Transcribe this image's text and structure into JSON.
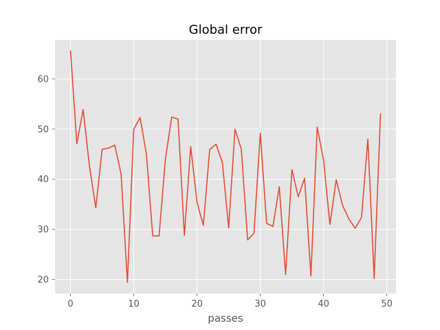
{
  "chart_data": {
    "type": "line",
    "title": "Global error",
    "xlabel": "passes",
    "ylabel": "",
    "xlim": [
      -2.45,
      51.45
    ],
    "ylim": [
      17.2,
      67.8
    ],
    "xticks": [
      0,
      10,
      20,
      30,
      40,
      50
    ],
    "yticks": [
      20,
      30,
      40,
      50,
      60
    ],
    "grid": true,
    "background": "#E5E5E5",
    "grid_color": "#FFFFFF",
    "line_color": "#E24A33",
    "x": [
      0,
      1,
      2,
      3,
      4,
      5,
      6,
      7,
      8,
      9,
      10,
      11,
      12,
      13,
      14,
      15,
      16,
      17,
      18,
      19,
      20,
      21,
      22,
      23,
      24,
      25,
      26,
      27,
      28,
      29,
      30,
      31,
      32,
      33,
      34,
      35,
      36,
      37,
      38,
      39,
      40,
      41,
      42,
      43,
      44,
      45,
      46,
      47,
      48,
      49
    ],
    "series": [
      {
        "values": [
          65.7,
          47.1,
          53.9,
          42.6,
          34.3,
          46.0,
          46.2,
          46.8,
          41.0,
          19.4,
          50.0,
          52.3,
          45.0,
          28.7,
          28.7,
          44.0,
          52.4,
          52.0,
          28.8,
          46.5,
          35.4,
          30.8,
          45.9,
          47.0,
          43.4,
          30.3,
          50.0,
          46.0,
          27.9,
          29.2,
          49.2,
          31.2,
          30.6,
          38.5,
          21.0,
          41.9,
          36.5,
          40.2,
          20.7,
          50.4,
          43.8,
          31.0,
          39.9,
          34.8,
          32.1,
          30.2,
          32.4,
          48.0,
          20.2,
          53.1
        ]
      }
    ]
  }
}
